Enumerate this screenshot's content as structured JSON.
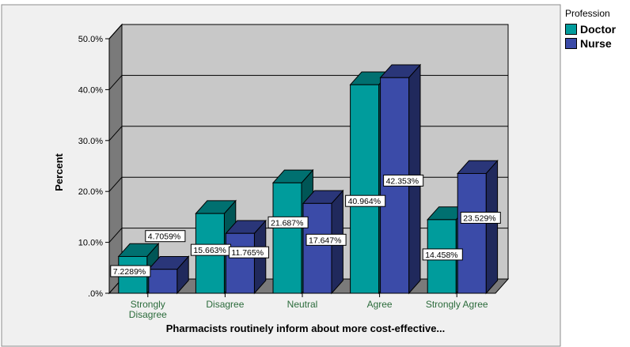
{
  "chart_data": {
    "type": "bar",
    "title": "",
    "xlabel": "Pharmacists routinely inform  about more cost-effective...",
    "ylabel": "Percent",
    "categories": [
      "Strongly Disagree",
      "Disagree",
      "Neutral",
      "Agree",
      "Strongly Agree"
    ],
    "category_lines": [
      [
        "Strongly",
        "Disagree"
      ],
      [
        "Disagree"
      ],
      [
        "Neutral"
      ],
      [
        "Agree"
      ],
      [
        "Strongly Agree"
      ]
    ],
    "ylim": [
      0,
      50
    ],
    "yticks": [
      ".0%",
      "10.0%",
      "20.0%",
      "30.0%",
      "40.0%",
      "50.0%"
    ],
    "grid": true,
    "legend_title": "Profession",
    "legend_placement": "top-right",
    "series": [
      {
        "name": "Doctor",
        "color": "#009C9C",
        "values": [
          7.2289,
          15.663,
          21.687,
          40.964,
          14.458
        ],
        "labels": [
          "7.2289%",
          "15.663%",
          "21.687%",
          "40.964%",
          "14.458%"
        ]
      },
      {
        "name": "Nurse",
        "color": "#3B4BA8",
        "values": [
          4.7059,
          11.765,
          17.647,
          42.353,
          23.529
        ],
        "labels": [
          "4.7059%",
          "11.765%",
          "17.647%",
          "42.353%",
          "23.529%"
        ]
      }
    ]
  }
}
